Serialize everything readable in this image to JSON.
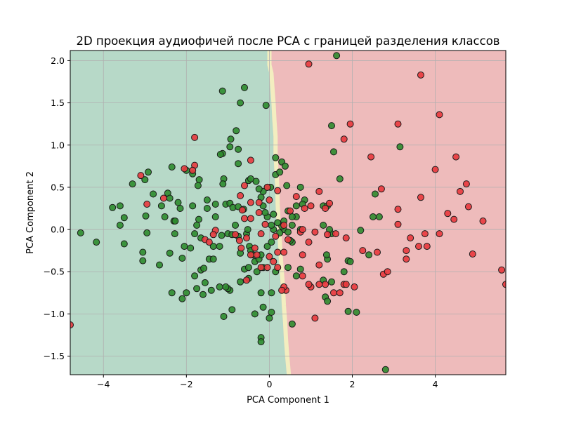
{
  "chart_data": {
    "type": "scatter",
    "title": "2D проекция аудиофичей после PCA с границей разделения классов",
    "xlabel": "PCA Component 1",
    "ylabel": "PCA Component 2",
    "xlim": [
      -4.8,
      5.7
    ],
    "ylim": [
      -1.72,
      2.12
    ],
    "xticks": [
      {
        "value": -4,
        "label": "−4"
      },
      {
        "value": -2,
        "label": "−2"
      },
      {
        "value": 0,
        "label": "0"
      },
      {
        "value": 2,
        "label": "2"
      },
      {
        "value": 4,
        "label": "4"
      }
    ],
    "yticks": [
      {
        "value": -1.5,
        "label": "−1.5"
      },
      {
        "value": -1.0,
        "label": "−1.0"
      },
      {
        "value": -0.5,
        "label": "−0.5"
      },
      {
        "value": 0.0,
        "label": "0.0"
      },
      {
        "value": 0.5,
        "label": "0.5"
      },
      {
        "value": 1.0,
        "label": "1.0"
      },
      {
        "value": 1.5,
        "label": "1.5"
      },
      {
        "value": 2.0,
        "label": "2.0"
      }
    ],
    "grid": true,
    "legend": "none",
    "colors": {
      "region_left": "#b7d9c8",
      "region_right": "#eebbbb",
      "boundary_band": "#f3eec0",
      "class_green": "#2e8b2e",
      "class_red": "#e8383d",
      "marker_edge": "#1a1a1a",
      "grid": "#b0b0b0"
    },
    "decision_boundary": [
      [
        -0.05,
        2.12
      ],
      [
        -0.05,
        1.95
      ],
      [
        0.0,
        1.85
      ],
      [
        0.02,
        1.7
      ],
      [
        0.05,
        1.5
      ],
      [
        0.07,
        1.3
      ],
      [
        0.1,
        1.1
      ],
      [
        0.1,
        0.9
      ],
      [
        0.12,
        0.7
      ],
      [
        0.14,
        0.5
      ],
      [
        0.15,
        0.3
      ],
      [
        0.17,
        0.1
      ],
      [
        0.2,
        -0.1
      ],
      [
        0.22,
        -0.3
      ],
      [
        0.25,
        -0.5
      ],
      [
        0.28,
        -0.7
      ],
      [
        0.3,
        -0.9
      ],
      [
        0.33,
        -1.1
      ],
      [
        0.35,
        -1.3
      ],
      [
        0.38,
        -1.5
      ],
      [
        0.42,
        -1.72
      ]
    ],
    "series": [
      {
        "color": "#2e8b2e",
        "points": [
          [
            1.62,
            2.06
          ],
          [
            -1.13,
            1.64
          ],
          [
            -0.6,
            1.68
          ],
          [
            -0.7,
            1.5
          ],
          [
            -0.08,
            1.47
          ],
          [
            -0.8,
            1.17
          ],
          [
            -0.75,
            0.95
          ],
          [
            -0.93,
            1.07
          ],
          [
            -0.95,
            0.98
          ],
          [
            -1.13,
            0.9
          ],
          [
            -1.18,
            0.89
          ],
          [
            -0.75,
            0.78
          ],
          [
            -2.35,
            0.74
          ],
          [
            -2.0,
            0.7
          ],
          [
            -1.85,
            0.66
          ],
          [
            -1.69,
            0.59
          ],
          [
            -1.72,
            0.52
          ],
          [
            -1.1,
            0.6
          ],
          [
            -0.5,
            0.58
          ],
          [
            -0.45,
            0.6
          ],
          [
            -0.32,
            0.57
          ],
          [
            -1.12,
            0.54
          ],
          [
            -2.92,
            0.68
          ],
          [
            -3.0,
            0.59
          ],
          [
            -3.3,
            0.54
          ],
          [
            -3.78,
            0.26
          ],
          [
            -3.6,
            0.28
          ],
          [
            -3.5,
            0.14
          ],
          [
            -3.6,
            0.05
          ],
          [
            -4.55,
            -0.04
          ],
          [
            -4.17,
            -0.15
          ],
          [
            -3.5,
            -0.17
          ],
          [
            -2.95,
            -0.04
          ],
          [
            -2.98,
            0.16
          ],
          [
            -2.8,
            0.42
          ],
          [
            -2.6,
            0.28
          ],
          [
            -2.45,
            0.43
          ],
          [
            -2.4,
            0.37
          ],
          [
            -2.52,
            0.15
          ],
          [
            -2.2,
            0.32
          ],
          [
            -2.15,
            0.25
          ],
          [
            -2.3,
            0.1
          ],
          [
            -2.28,
            -0.05
          ],
          [
            -2.27,
            0.1
          ],
          [
            -1.85,
            0.28
          ],
          [
            -1.5,
            0.35
          ],
          [
            -1.5,
            0.25
          ],
          [
            -1.3,
            0.3
          ],
          [
            -1.05,
            0.3
          ],
          [
            -0.95,
            0.31
          ],
          [
            -0.88,
            0.26
          ],
          [
            -0.75,
            0.27
          ],
          [
            -0.62,
            0.24
          ],
          [
            -0.82,
            0.05
          ],
          [
            -1.3,
            0.15
          ],
          [
            -1.7,
            0.12
          ],
          [
            -1.75,
            0.05
          ],
          [
            -1.8,
            -0.05
          ],
          [
            -1.65,
            -0.1
          ],
          [
            -1.9,
            -0.22
          ],
          [
            -2.05,
            -0.2
          ],
          [
            -2.1,
            -0.34
          ],
          [
            -2.4,
            -0.28
          ],
          [
            -2.65,
            -0.42
          ],
          [
            -3.05,
            -0.27
          ],
          [
            -3.05,
            -0.37
          ],
          [
            -1.8,
            -0.55
          ],
          [
            -1.65,
            -0.48
          ],
          [
            -1.58,
            -0.46
          ],
          [
            -1.45,
            -0.35
          ],
          [
            -1.35,
            -0.35
          ],
          [
            -1.35,
            -0.2
          ],
          [
            -1.2,
            -0.2
          ],
          [
            -1.15,
            -0.07
          ],
          [
            -1.0,
            -0.05
          ],
          [
            -0.9,
            -0.06
          ],
          [
            -0.75,
            -0.08
          ],
          [
            -0.55,
            -0.05
          ],
          [
            -0.52,
            0.0
          ],
          [
            -0.48,
            -0.2
          ],
          [
            -0.45,
            -0.25
          ],
          [
            -0.4,
            -0.3
          ],
          [
            -0.35,
            -0.38
          ],
          [
            -0.25,
            -0.35
          ],
          [
            -0.6,
            -0.47
          ],
          [
            -0.7,
            -0.28
          ],
          [
            -0.5,
            -0.45
          ],
          [
            -0.3,
            -0.5
          ],
          [
            -0.15,
            -0.45
          ],
          [
            -0.2,
            -0.3
          ],
          [
            -0.05,
            -0.2
          ],
          [
            0.05,
            -0.15
          ],
          [
            0.1,
            0.0
          ],
          [
            0.05,
            0.05
          ],
          [
            -0.05,
            0.15
          ],
          [
            -0.1,
            0.2
          ],
          [
            -0.15,
            0.28
          ],
          [
            -0.2,
            0.38
          ],
          [
            -0.15,
            0.45
          ],
          [
            0.03,
            0.5
          ],
          [
            0.15,
            0.65
          ],
          [
            0.25,
            0.68
          ],
          [
            0.3,
            0.8
          ],
          [
            0.38,
            0.75
          ],
          [
            0.15,
            0.85
          ],
          [
            0.42,
            0.52
          ],
          [
            0.75,
            0.5
          ],
          [
            0.65,
            0.28
          ],
          [
            0.55,
            0.05
          ],
          [
            0.35,
            0.0
          ],
          [
            0.55,
            -0.15
          ],
          [
            0.45,
            -0.45
          ],
          [
            0.75,
            -0.47
          ],
          [
            0.65,
            -0.55
          ],
          [
            0.15,
            -0.5
          ],
          [
            0.05,
            -0.75
          ],
          [
            -0.2,
            -0.75
          ],
          [
            -0.5,
            -0.58
          ],
          [
            -0.7,
            -0.62
          ],
          [
            -0.95,
            -0.72
          ],
          [
            -1.0,
            -0.7
          ],
          [
            -1.05,
            -0.68
          ],
          [
            -1.2,
            -0.68
          ],
          [
            -1.4,
            -0.72
          ],
          [
            -1.6,
            -0.77
          ],
          [
            -1.75,
            -0.7
          ],
          [
            -2.0,
            -0.75
          ],
          [
            -2.1,
            -0.82
          ],
          [
            -2.35,
            -0.75
          ],
          [
            -1.55,
            -0.63
          ],
          [
            -1.1,
            -1.03
          ],
          [
            -0.9,
            -0.95
          ],
          [
            -0.35,
            -1.0
          ],
          [
            -0.15,
            -0.92
          ],
          [
            0.05,
            -0.98
          ],
          [
            0.0,
            -1.05
          ],
          [
            -0.2,
            -1.28
          ],
          [
            -0.2,
            -1.33
          ],
          [
            0.55,
            -1.12
          ],
          [
            1.3,
            -0.6
          ],
          [
            1.35,
            -0.8
          ],
          [
            1.4,
            -0.85
          ],
          [
            1.5,
            -0.62
          ],
          [
            1.8,
            -0.5
          ],
          [
            1.9,
            -0.37
          ],
          [
            1.95,
            -0.38
          ],
          [
            1.9,
            -0.97
          ],
          [
            2.1,
            -0.98
          ],
          [
            2.4,
            -0.3
          ],
          [
            2.55,
            0.42
          ],
          [
            2.5,
            0.15
          ],
          [
            2.65,
            0.15
          ],
          [
            2.8,
            -1.66
          ],
          [
            3.15,
            0.98
          ],
          [
            2.2,
            -0.01
          ],
          [
            1.5,
            -0.05
          ],
          [
            1.4,
            -0.35
          ],
          [
            1.38,
            -0.3
          ],
          [
            1.3,
            0.28
          ],
          [
            1.4,
            0.28
          ],
          [
            1.45,
            0.0
          ],
          [
            1.7,
            0.6
          ],
          [
            1.3,
            0.05
          ],
          [
            1.5,
            1.23
          ],
          [
            1.55,
            0.92
          ],
          [
            0.85,
            0.35
          ],
          [
            0.75,
            0.0
          ],
          [
            0.8,
            0.3
          ],
          [
            0.65,
            0.15
          ],
          [
            0.45,
            0.22
          ],
          [
            0.55,
            0.15
          ],
          [
            0.35,
            0.1
          ],
          [
            0.3,
            0.04
          ],
          [
            0.2,
            0.08
          ],
          [
            0.1,
            0.18
          ],
          [
            0.25,
            -0.04
          ],
          [
            0.45,
            -0.03
          ],
          [
            0.5,
            -0.13
          ],
          [
            -0.05,
            0.5
          ],
          [
            -0.25,
            0.48
          ]
        ]
      },
      {
        "color": "#e8383d",
        "points": [
          [
            0.95,
            1.96
          ],
          [
            3.65,
            1.83
          ],
          [
            4.1,
            1.36
          ],
          [
            1.95,
            1.25
          ],
          [
            3.1,
            1.25
          ],
          [
            -1.8,
            1.09
          ],
          [
            1.8,
            1.07
          ],
          [
            2.45,
            0.86
          ],
          [
            4.5,
            0.86
          ],
          [
            -0.45,
            0.82
          ],
          [
            -1.8,
            0.76
          ],
          [
            -1.85,
            0.7
          ],
          [
            -2.05,
            0.72
          ],
          [
            4.0,
            0.71
          ],
          [
            -3.1,
            0.64
          ],
          [
            4.75,
            0.54
          ],
          [
            2.7,
            0.48
          ],
          [
            4.6,
            0.45
          ],
          [
            1.2,
            0.45
          ],
          [
            -0.05,
            0.5
          ],
          [
            0.2,
            0.46
          ],
          [
            0.65,
            0.39
          ],
          [
            3.65,
            0.38
          ],
          [
            -2.55,
            0.37
          ],
          [
            -0.45,
            0.32
          ],
          [
            -0.25,
            0.32
          ],
          [
            -0.65,
            0.23
          ],
          [
            -0.6,
            0.13
          ],
          [
            -0.45,
            0.13
          ],
          [
            -0.25,
            0.2
          ],
          [
            0.5,
            0.22
          ],
          [
            0.85,
            0.25
          ],
          [
            1.0,
            0.28
          ],
          [
            1.45,
            0.31
          ],
          [
            1.35,
            0.25
          ],
          [
            4.3,
            0.19
          ],
          [
            4.45,
            0.12
          ],
          [
            4.8,
            0.27
          ],
          [
            5.15,
            0.1
          ],
          [
            3.1,
            0.24
          ],
          [
            0.0,
            0.35
          ],
          [
            0.35,
            0.05
          ],
          [
            -0.2,
            -0.05
          ],
          [
            -0.55,
            -0.1
          ],
          [
            -0.72,
            -0.13
          ],
          [
            -0.68,
            -0.22
          ],
          [
            -0.82,
            -0.06
          ],
          [
            -1.3,
            -0.01
          ],
          [
            -1.35,
            -0.06
          ],
          [
            -1.55,
            -0.12
          ],
          [
            -1.45,
            -0.15
          ],
          [
            -0.1,
            0.06
          ],
          [
            0.15,
            -0.08
          ],
          [
            0.45,
            -0.12
          ],
          [
            0.75,
            -0.03
          ],
          [
            0.8,
            0.0
          ],
          [
            1.1,
            -0.03
          ],
          [
            1.4,
            -0.06
          ],
          [
            1.6,
            -0.05
          ],
          [
            1.85,
            -0.1
          ],
          [
            2.25,
            -0.25
          ],
          [
            2.6,
            -0.27
          ],
          [
            3.3,
            -0.25
          ],
          [
            3.4,
            -0.1
          ],
          [
            3.75,
            -0.05
          ],
          [
            3.6,
            -0.2
          ],
          [
            3.1,
            0.06
          ],
          [
            3.8,
            -0.2
          ],
          [
            4.1,
            -0.05
          ],
          [
            4.9,
            -0.29
          ],
          [
            3.3,
            -0.35
          ],
          [
            2.75,
            -0.53
          ],
          [
            2.85,
            -0.5
          ],
          [
            2.05,
            -0.68
          ],
          [
            1.8,
            -0.65
          ],
          [
            1.7,
            -0.75
          ],
          [
            1.55,
            -0.75
          ],
          [
            1.35,
            -0.65
          ],
          [
            1.2,
            -0.65
          ],
          [
            1.0,
            -0.68
          ],
          [
            0.95,
            -0.65
          ],
          [
            0.8,
            -0.55
          ],
          [
            0.4,
            -0.72
          ],
          [
            0.35,
            -0.68
          ],
          [
            0.3,
            -0.72
          ],
          [
            0.2,
            -0.45
          ],
          [
            0.1,
            -0.38
          ],
          [
            0.0,
            -0.32
          ],
          [
            0.2,
            -0.27
          ],
          [
            0.35,
            -0.27
          ],
          [
            0.8,
            -0.3
          ],
          [
            0.95,
            -0.15
          ],
          [
            1.2,
            -0.42
          ],
          [
            1.85,
            -0.65
          ],
          [
            1.1,
            -1.05
          ],
          [
            5.6,
            -0.48
          ],
          [
            5.7,
            -0.65
          ],
          [
            -0.55,
            -0.6
          ],
          [
            -0.2,
            -0.45
          ],
          [
            -0.35,
            -0.22
          ],
          [
            -0.45,
            -0.3
          ],
          [
            -0.3,
            -0.3
          ],
          [
            -0.05,
            -0.45
          ],
          [
            -4.8,
            -1.13
          ],
          [
            -2.95,
            0.3
          ],
          [
            -0.7,
            0.4
          ],
          [
            -0.6,
            0.52
          ]
        ]
      }
    ]
  }
}
